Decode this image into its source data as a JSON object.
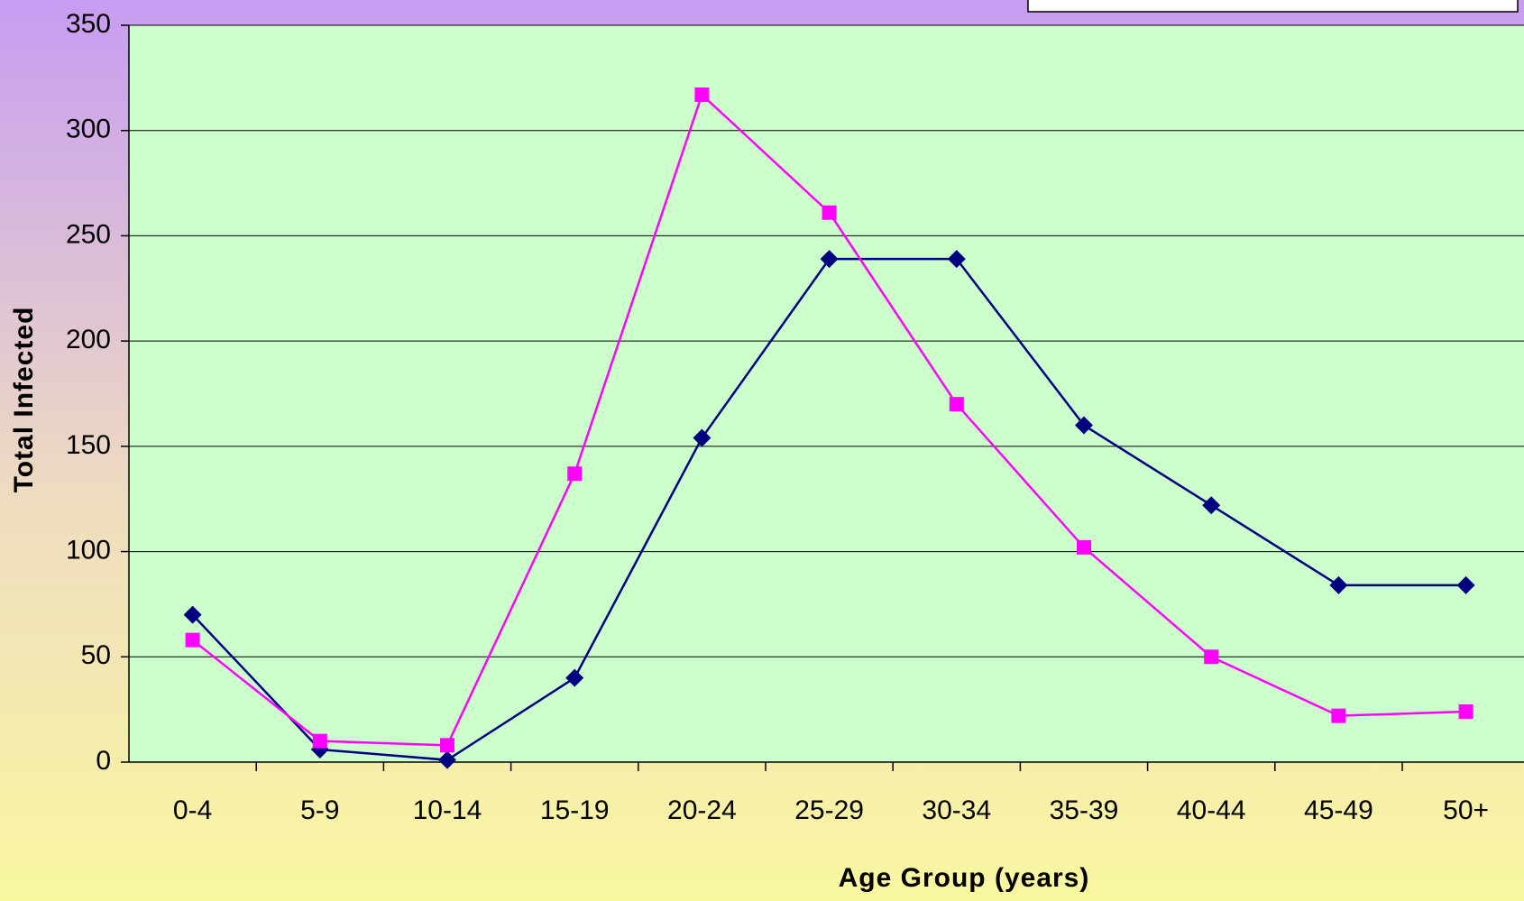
{
  "chart_data": {
    "type": "line",
    "x_label": "Age Group (years)",
    "y_label": "Total Infected",
    "categories": [
      "0-4",
      "5-9",
      "10-14",
      "15-19",
      "20-24",
      "25-29",
      "30-34",
      "35-39",
      "40-44",
      "45-49",
      "50+"
    ],
    "series": [
      {
        "color": "#000080",
        "marker": "diamond",
        "values": [
          70,
          6,
          1,
          40,
          154,
          239,
          239,
          160,
          122,
          84,
          84
        ]
      },
      {
        "color": "#ff00ff",
        "marker": "square",
        "values": [
          58,
          10,
          8,
          137,
          317,
          261,
          170,
          102,
          50,
          22,
          24
        ]
      }
    ],
    "ylim": [
      0,
      350
    ],
    "yticks": [
      0,
      50,
      100,
      150,
      200,
      250,
      300,
      350
    ],
    "grid": true
  }
}
